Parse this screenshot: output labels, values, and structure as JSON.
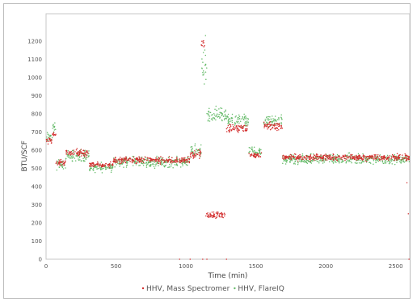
{
  "chart_data": {
    "type": "scatter",
    "title": "",
    "xlabel": "Time (min)",
    "ylabel": "BTU/SCF",
    "xlim": [
      0,
      2600
    ],
    "ylim": [
      0,
      1350
    ],
    "x_ticks": [
      0,
      500,
      1000,
      1500,
      2000,
      2500
    ],
    "y_ticks": [
      0,
      100,
      200,
      300,
      400,
      500,
      600,
      700,
      800,
      900,
      1000,
      1100,
      1200
    ],
    "grid": false,
    "legend": "bottom-center",
    "series": [
      {
        "name": "HHV, Mass Spectromer",
        "color": "#d32f2f",
        "segments": [
          {
            "x": [
              0,
              45
            ],
            "y": 650,
            "spread": 25
          },
          {
            "x": [
              45,
              70
            ],
            "y": 690,
            "spread": 20
          },
          {
            "x": [
              70,
              140
            ],
            "y": 530,
            "spread": 25
          },
          {
            "x": [
              140,
              310
            ],
            "y": 585,
            "spread": 30
          },
          {
            "x": [
              310,
              480
            ],
            "y": 520,
            "spread": 20
          },
          {
            "x": [
              480,
              1030
            ],
            "y": 545,
            "spread": 25
          },
          {
            "x": [
              1030,
              1110
            ],
            "y": 580,
            "spread": 35
          },
          {
            "x": [
              1110,
              1135
            ],
            "y": 1180,
            "spread": 30
          },
          {
            "x": [
              1140,
              1280
            ],
            "y": 245,
            "spread": 30
          },
          {
            "x": [
              1290,
              1440
            ],
            "y": 720,
            "spread": 30
          },
          {
            "x": [
              1450,
              1540
            ],
            "y": 570,
            "spread": 25
          },
          {
            "x": [
              1555,
              1690
            ],
            "y": 730,
            "spread": 30
          },
          {
            "x": [
              1690,
              2600
            ],
            "y": 560,
            "spread": 25
          }
        ],
        "outliers": [
          [
            1120,
            0
          ],
          [
            1150,
            0
          ],
          [
            1290,
            0
          ],
          [
            2580,
            420
          ],
          [
            2590,
            250
          ],
          [
            2595,
            0
          ],
          [
            1030,
            0
          ],
          [
            955,
            0
          ]
        ]
      },
      {
        "name": "HHV, FlareIQ",
        "color": "#66bb6a",
        "segments": [
          {
            "x": [
              0,
              45
            ],
            "y": 670,
            "spread": 40
          },
          {
            "x": [
              45,
              70
            ],
            "y": 720,
            "spread": 40
          },
          {
            "x": [
              70,
              140
            ],
            "y": 520,
            "spread": 40
          },
          {
            "x": [
              140,
              310
            ],
            "y": 570,
            "spread": 45
          },
          {
            "x": [
              310,
              480
            ],
            "y": 505,
            "spread": 35
          },
          {
            "x": [
              480,
              1030
            ],
            "y": 535,
            "spread": 40
          },
          {
            "x": [
              1030,
              1110
            ],
            "y": 600,
            "spread": 50
          },
          {
            "x": [
              1110,
              1150
            ],
            "y": 1050,
            "spread": 120
          },
          {
            "x": [
              1150,
              1290
            ],
            "y": 790,
            "spread": 60
          },
          {
            "x": [
              1290,
              1450
            ],
            "y": 760,
            "spread": 50
          },
          {
            "x": [
              1450,
              1540
            ],
            "y": 590,
            "spread": 40
          },
          {
            "x": [
              1555,
              1690
            ],
            "y": 760,
            "spread": 50
          },
          {
            "x": [
              1690,
              2600
            ],
            "y": 550,
            "spread": 40
          }
        ],
        "outliers": [
          [
            1140,
            1230
          ],
          [
            1135,
            1150
          ]
        ]
      }
    ]
  }
}
